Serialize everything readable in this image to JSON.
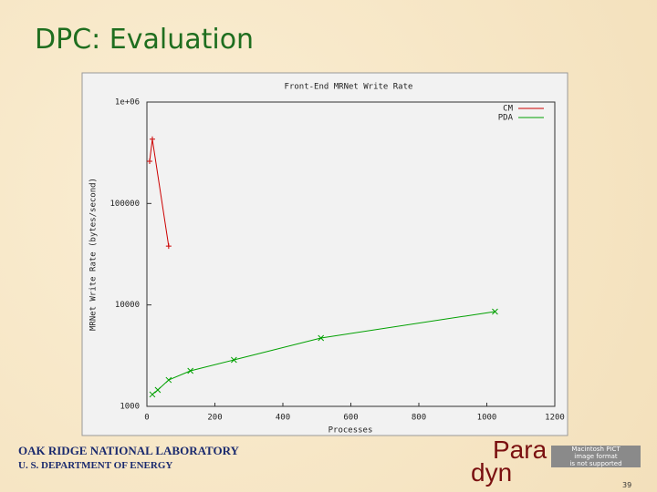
{
  "slide_title": "DPC: Evaluation",
  "footer": {
    "lab": "OAK RIDGE NATIONAL LABORATORY",
    "dept": "U. S. DEPARTMENT OF ENERGY",
    "page": "39"
  },
  "logo": {
    "top": "Para",
    "bottom": "dyn"
  },
  "placeholder": [
    "Macintosh PICT",
    "image format",
    "is not supported"
  ],
  "chart_data": {
    "type": "line",
    "title": "Front-End MRNet Write Rate",
    "x_label": "Processes",
    "y_label": "MRNet Write Rate (bytes/second)",
    "xlim": [
      0,
      1200
    ],
    "xticks": [
      0,
      200,
      400,
      600,
      800,
      1000,
      1200
    ],
    "ylim": [
      1000,
      1000000
    ],
    "log_y": true,
    "yticks": [
      1000,
      10000,
      100000,
      {
        "value": 1000000,
        "label": "1e+06"
      }
    ],
    "legend": "top-right",
    "series": [
      {
        "name": "CM",
        "color": "#cc0000",
        "x": [
          8,
          16,
          64
        ],
        "values": [
          261000,
          430000,
          38000
        ]
      },
      {
        "name": "PDA",
        "color": "#00a000",
        "x": [
          16,
          32,
          64,
          128,
          256,
          512,
          1024
        ],
        "values": [
          1310,
          1450,
          1820,
          2240,
          2870,
          4720,
          8600
        ]
      }
    ]
  }
}
